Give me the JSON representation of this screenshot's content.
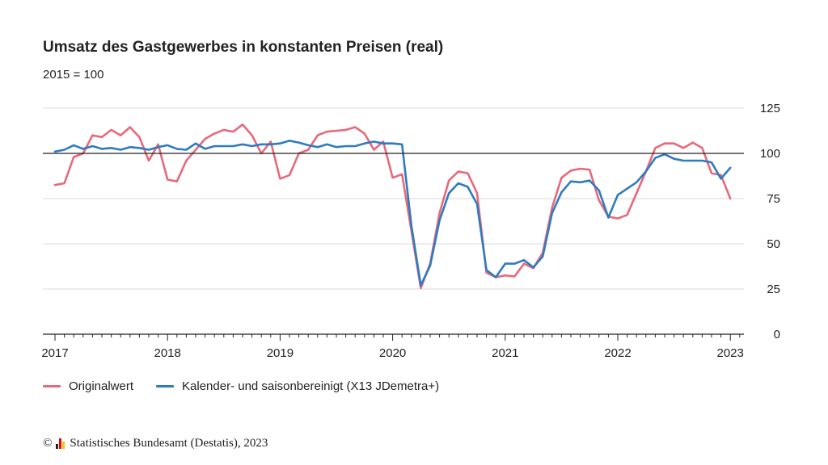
{
  "chart_data": {
    "type": "line",
    "title": "Umsatz des Gastgewerbes in konstanten Preisen (real)",
    "subtitle": "2015 = 100",
    "ylim": [
      0,
      125
    ],
    "yticks": [
      0,
      25,
      50,
      75,
      100,
      125
    ],
    "reference_line": 100,
    "x_start": "2017-01",
    "xticks": [
      "2017",
      "2018",
      "2019",
      "2020",
      "2021",
      "2022",
      "2023"
    ],
    "grid": true,
    "legend_position": "bottom-left",
    "series": [
      {
        "name": "Originalwert",
        "color": "#e8697a",
        "values": [
          82.5,
          83.5,
          98,
          100,
          110,
          109,
          113,
          110,
          114.5,
          109,
          96,
          105,
          85.5,
          84.5,
          96,
          102,
          108,
          111,
          113,
          112,
          116,
          110,
          100,
          106.5,
          86,
          88,
          100,
          102,
          110,
          112,
          112.5,
          113,
          114.5,
          111,
          102,
          106.5,
          86.5,
          88.5,
          57,
          25.5,
          39,
          67,
          85,
          90,
          89,
          78,
          34,
          31.5,
          32.5,
          32,
          39,
          36.5,
          45,
          70,
          86.5,
          90.5,
          91.5,
          91,
          74,
          65,
          64,
          66,
          78,
          90,
          103,
          105.5,
          105.5,
          103,
          106,
          103,
          89,
          88,
          75
        ]
      },
      {
        "name": "Kalender- und saisonbereinigt (X13 JDemetra+)",
        "color": "#2f7bbf",
        "values": [
          101,
          102,
          104.5,
          102.5,
          104,
          102.5,
          103,
          102,
          103.5,
          103,
          102,
          103.5,
          104.5,
          102.5,
          102,
          105.5,
          102.5,
          104,
          104,
          104,
          105,
          104,
          105,
          105,
          105.5,
          107,
          106,
          104.5,
          103.5,
          105,
          103.5,
          104,
          104,
          105.5,
          106.5,
          105.5,
          105.5,
          105,
          60,
          27,
          38,
          63,
          78,
          83.5,
          81.5,
          72,
          35.5,
          31.5,
          39,
          39,
          41,
          37,
          43,
          67,
          78.5,
          84.5,
          84,
          85,
          79.5,
          64.5,
          77,
          80.5,
          84,
          90,
          97.5,
          99.5,
          97,
          96,
          96,
          96,
          95,
          86,
          92
        ]
      }
    ]
  },
  "footer": {
    "copyright": "©",
    "source": "Statistisches Bundesamt (Destatis), 2023",
    "logo_colors": [
      "#222222",
      "#e30613",
      "#f7c300"
    ]
  }
}
